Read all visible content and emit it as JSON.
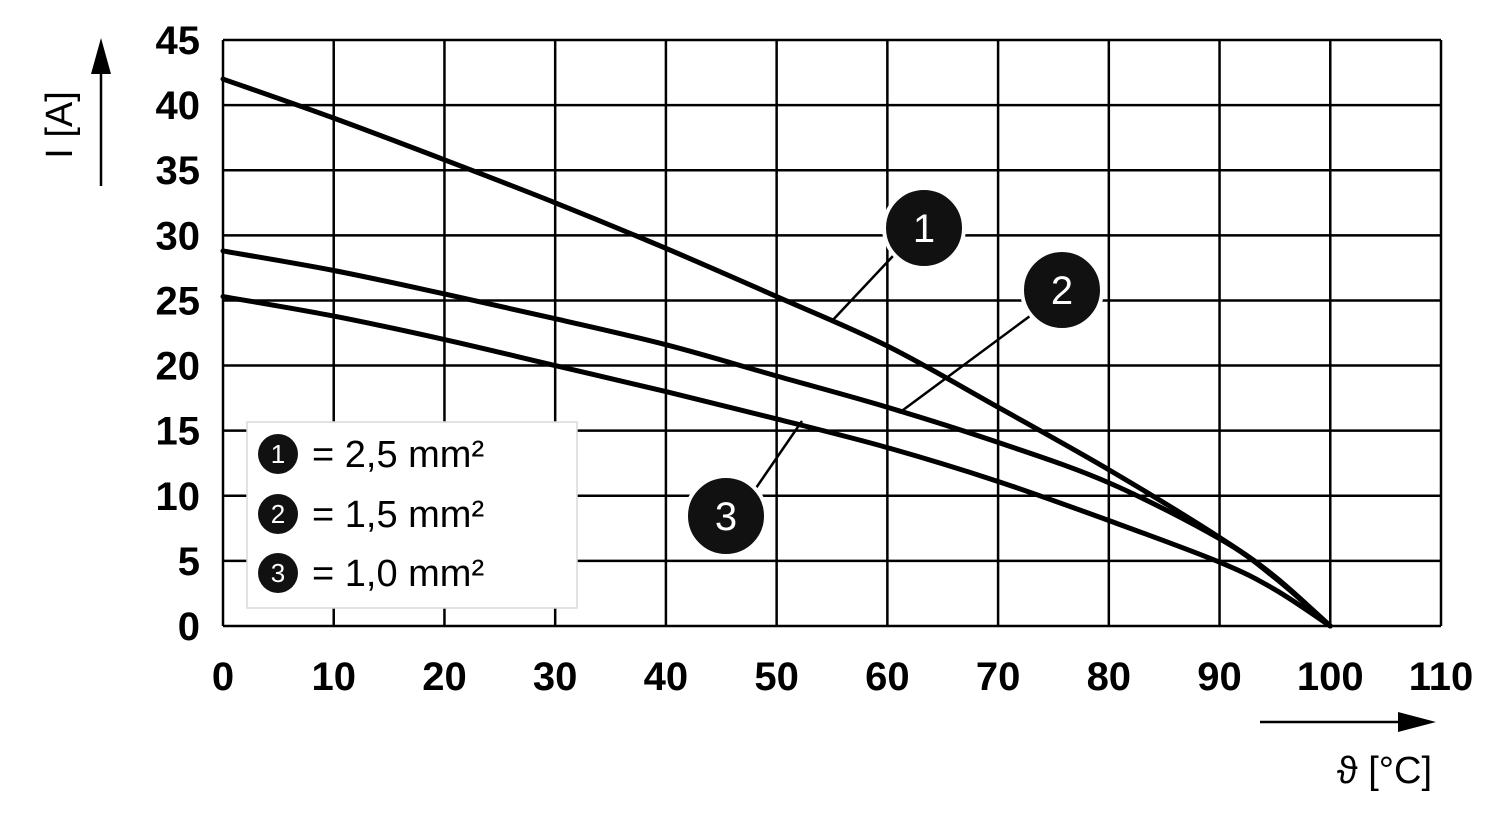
{
  "chart_data": {
    "type": "line",
    "title": "",
    "xlabel": "ϑ [°C]",
    "ylabel": "I [A]",
    "xlim": [
      0,
      110
    ],
    "ylim": [
      0,
      45
    ],
    "xticks": [
      "0",
      "10",
      "20",
      "30",
      "40",
      "50",
      "60",
      "70",
      "80",
      "90",
      "100",
      "110"
    ],
    "yticks": [
      "0",
      "5",
      "10",
      "15",
      "20",
      "25",
      "30",
      "35",
      "40",
      "45"
    ],
    "grid": true,
    "legend_position": "bottom-left",
    "series": [
      {
        "id": "1",
        "name": "2,5 mm²",
        "x": [
          0,
          10,
          20,
          30,
          40,
          50,
          60,
          70,
          80,
          90,
          95,
          100
        ],
        "y": [
          42,
          39,
          35.8,
          32.5,
          29,
          25.3,
          21.5,
          16.8,
          12,
          6.8,
          3.8,
          0
        ]
      },
      {
        "id": "2",
        "name": "1,5 mm²",
        "x": [
          0,
          10,
          20,
          30,
          40,
          50,
          60,
          70,
          80,
          90,
          95,
          100
        ],
        "y": [
          28.8,
          27.3,
          25.5,
          23.6,
          21.6,
          19.2,
          16.8,
          14.1,
          11,
          6.7,
          3.7,
          0
        ]
      },
      {
        "id": "3",
        "name": "1,0 mm²",
        "x": [
          0,
          10,
          20,
          30,
          40,
          50,
          60,
          70,
          80,
          90,
          95,
          100
        ],
        "y": [
          25.3,
          23.8,
          22,
          20,
          18,
          15.9,
          13.7,
          11.1,
          8.1,
          4.9,
          2.8,
          0
        ]
      }
    ],
    "legend": [
      {
        "badge": "1",
        "label": "= 2,5 mm²"
      },
      {
        "badge": "2",
        "label": "= 1,5 mm²"
      },
      {
        "badge": "3",
        "label": "= 1,0 mm²"
      }
    ],
    "callouts": [
      "1",
      "2",
      "3"
    ]
  }
}
